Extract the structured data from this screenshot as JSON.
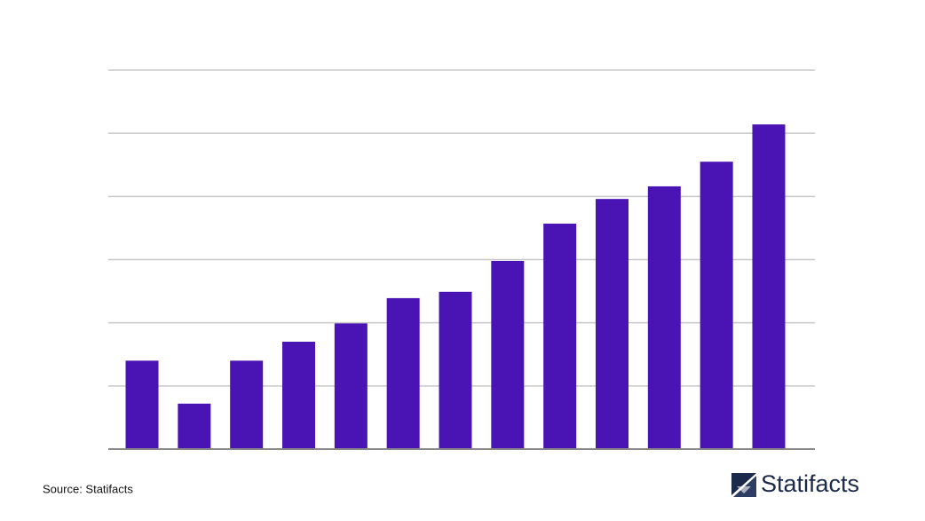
{
  "chart_data": {
    "type": "bar",
    "categories": [
      null,
      null,
      null,
      null,
      null,
      null,
      null,
      null,
      null,
      null,
      null,
      null,
      null
    ],
    "values": [
      1.4,
      0.72,
      1.4,
      1.7,
      1.99,
      2.39,
      2.49,
      2.98,
      3.57,
      3.96,
      4.16,
      4.55,
      5.14
    ],
    "color": "#4a14b4",
    "ylim": [
      0,
      6
    ],
    "yticks": [
      1,
      2,
      3,
      4,
      5,
      6
    ],
    "grid": true
  },
  "footer": {
    "source": "Source: Statifacts",
    "logo": "Statifacts"
  }
}
